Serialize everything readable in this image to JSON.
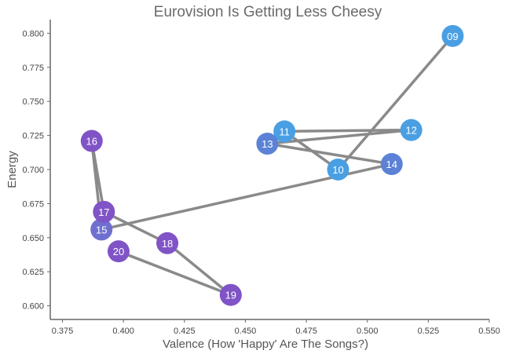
{
  "chart_data": {
    "type": "scatter",
    "title": "Eurovision Is Getting Less Cheesy",
    "xlabel": "Valence (How 'Happy' Are The Songs?)",
    "ylabel": "Energy",
    "xlim": [
      0.37,
      0.55
    ],
    "ylim": [
      0.59,
      0.81
    ],
    "xticks": [
      "0.375",
      "0.400",
      "0.425",
      "0.450",
      "0.475",
      "0.500",
      "0.525",
      "0.550"
    ],
    "yticks": [
      "0.600",
      "0.625",
      "0.650",
      "0.675",
      "0.700",
      "0.725",
      "0.750",
      "0.775",
      "0.800"
    ],
    "grid": false,
    "connected_in_order": true,
    "line_color": "#8a8a8a",
    "points": [
      {
        "label": "09",
        "x": 0.535,
        "y": 0.798,
        "color": "#4a9fe3"
      },
      {
        "label": "10",
        "x": 0.488,
        "y": 0.7,
        "color": "#4a9fe3"
      },
      {
        "label": "11",
        "x": 0.466,
        "y": 0.728,
        "color": "#4a9fe3"
      },
      {
        "label": "12",
        "x": 0.518,
        "y": 0.729,
        "color": "#4a9fe3"
      },
      {
        "label": "13",
        "x": 0.459,
        "y": 0.719,
        "color": "#5b82d6"
      },
      {
        "label": "14",
        "x": 0.51,
        "y": 0.704,
        "color": "#5b82d6"
      },
      {
        "label": "15",
        "x": 0.391,
        "y": 0.656,
        "color": "#6f6fd0"
      },
      {
        "label": "16",
        "x": 0.387,
        "y": 0.721,
        "color": "#8054c6"
      },
      {
        "label": "17",
        "x": 0.392,
        "y": 0.669,
        "color": "#8054c6"
      },
      {
        "label": "18",
        "x": 0.418,
        "y": 0.646,
        "color": "#8054c6"
      },
      {
        "label": "19",
        "x": 0.444,
        "y": 0.608,
        "color": "#8054c6"
      },
      {
        "label": "20",
        "x": 0.398,
        "y": 0.64,
        "color": "#8054c6"
      }
    ]
  }
}
